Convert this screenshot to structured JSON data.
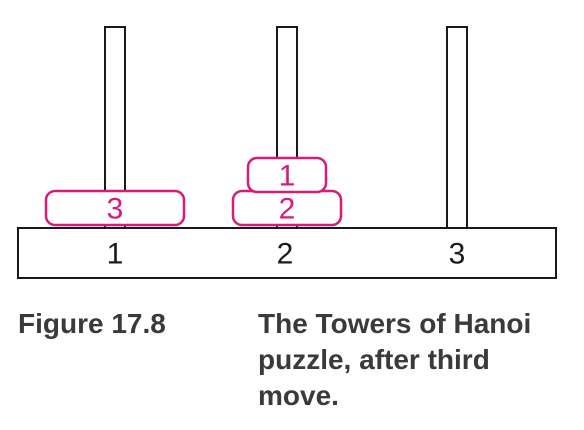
{
  "figure": {
    "number": "Figure 17.8",
    "caption": "The Towers of Hanoi puzzle, after third move."
  },
  "diagram": {
    "accent_color": "#d81b7b",
    "peg_labels": [
      "1",
      "2",
      "3"
    ],
    "disks": [
      {
        "label": "3",
        "peg": 1,
        "level": 0,
        "size": 3
      },
      {
        "label": "2",
        "peg": 2,
        "level": 0,
        "size": 2
      },
      {
        "label": "1",
        "peg": 2,
        "level": 1,
        "size": 1
      }
    ]
  }
}
